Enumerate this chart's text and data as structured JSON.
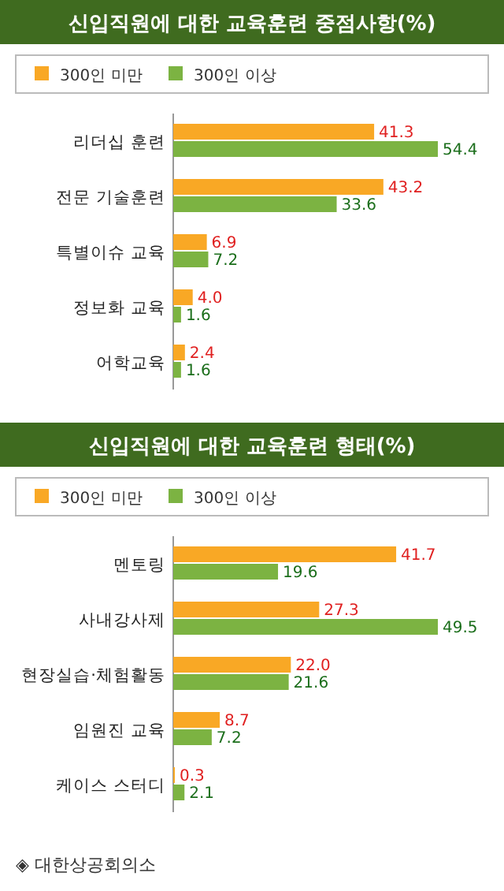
{
  "chart_data": [
    {
      "type": "bar",
      "orientation": "horizontal",
      "title": "신입직원에 대한 교육훈련 중점사항(%)",
      "categories": [
        "리더십 훈련",
        "전문 기술훈련",
        "특별이슈 교육",
        "정보화 교육",
        "어학교육"
      ],
      "legend": "top",
      "series": [
        {
          "name": "300인 미만",
          "color": "#f9a825",
          "values": [
            41.3,
            43.2,
            6.9,
            4.0,
            2.4
          ],
          "value_labels": [
            "41.3",
            "43.2",
            "6.9",
            "4.0",
            "2.4"
          ]
        },
        {
          "name": "300인 이상",
          "color": "#7cb342",
          "values": [
            54.4,
            33.6,
            7.2,
            1.6,
            1.6
          ],
          "value_labels": [
            "54.4",
            "33.6",
            "7.2",
            "1.6",
            "1.6"
          ]
        }
      ]
    },
    {
      "type": "bar",
      "orientation": "horizontal",
      "title": "신입직원에 대한 교육훈련 형태(%)",
      "categories": [
        "멘토링",
        "사내강사제",
        "현장실습·체험활동",
        "임원진 교육",
        "케이스 스터디"
      ],
      "legend": "top",
      "series": [
        {
          "name": "300인 미만",
          "color": "#f9a825",
          "values": [
            41.7,
            27.3,
            22.0,
            8.7,
            0.3
          ],
          "value_labels": [
            "41.7",
            "27.3",
            "22.0",
            "8.7",
            "0.3"
          ]
        },
        {
          "name": "300인 이상",
          "color": "#7cb342",
          "values": [
            19.6,
            49.5,
            21.6,
            7.2,
            2.1
          ],
          "value_labels": [
            "19.6",
            "49.5",
            "21.6",
            "7.2",
            "2.1"
          ]
        }
      ],
      "annotations": [
        "◈ 대한상공회의소"
      ]
    }
  ]
}
